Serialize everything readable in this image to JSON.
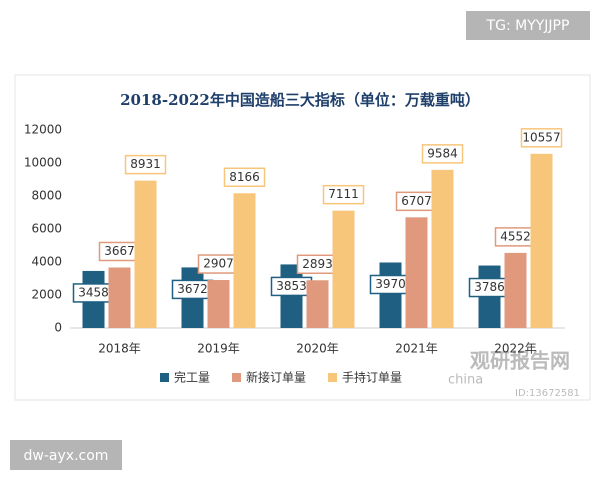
{
  "chart_data": {
    "type": "bar",
    "title": "2018-2022年中国造船三大指标（单位：万载重吨）",
    "categories": [
      "2018年",
      "2019年",
      "2020年",
      "2021年",
      "2022年"
    ],
    "series": [
      {
        "name": "完工量",
        "color": "#1f5f82",
        "values": [
          3458,
          3672,
          3853,
          3970,
          3786
        ]
      },
      {
        "name": "新接订单量",
        "color": "#e0997c",
        "values": [
          3667,
          2907,
          2893,
          6707,
          4552
        ]
      },
      {
        "name": "手持订单量",
        "color": "#f8c67a",
        "values": [
          8931,
          8166,
          7111,
          9584,
          10557
        ]
      }
    ],
    "ylim": [
      0,
      12000
    ],
    "yticks": [
      0,
      2000,
      4000,
      6000,
      8000,
      10000,
      12000
    ],
    "legend": "bottom"
  },
  "header_tag": "TG: MYYJJPP",
  "footer_tag": "dw-ayx.com",
  "watermark": {
    "brand": "观研报告网",
    "site": "china",
    "id": "ID:13672581"
  }
}
